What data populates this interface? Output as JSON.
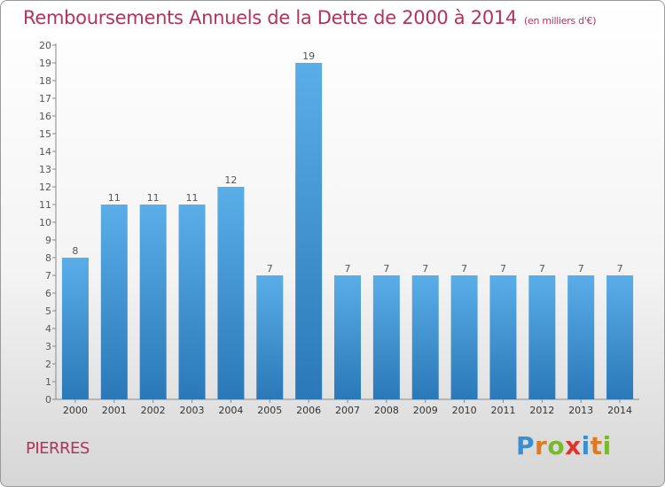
{
  "title": "Remboursements Annuels de la Dette de 2000 à 2014",
  "unit": "(en milliers d'€)",
  "commune": "PIERRES",
  "brand": {
    "letters": [
      {
        "char": "P",
        "color": "#3a8fd0"
      },
      {
        "char": "r",
        "color": "#e07a1f"
      },
      {
        "char": "o",
        "color": "#7ab830"
      },
      {
        "char": "x",
        "color": "#e0342b"
      },
      {
        "char": "i",
        "color": "#3a8fd0"
      },
      {
        "char": "t",
        "color": "#e07a1f"
      },
      {
        "char": "i",
        "color": "#7ab830"
      }
    ]
  },
  "colors": {
    "title": "#b5325c",
    "bar_top": "#5aaee8",
    "bar_bottom": "#2a78b8",
    "label": "#555555"
  },
  "chart_data": {
    "type": "bar",
    "title": "Remboursements Annuels de la Dette de 2000 à 2014",
    "categories": [
      "2000",
      "2001",
      "2002",
      "2003",
      "2004",
      "2005",
      "2006",
      "2007",
      "2008",
      "2009",
      "2010",
      "2011",
      "2012",
      "2013",
      "2014"
    ],
    "values": [
      8,
      11,
      11,
      11,
      12,
      7,
      19,
      7,
      7,
      7,
      7,
      7,
      7,
      7,
      7
    ],
    "ylim": [
      0,
      20
    ],
    "yticks": [
      0,
      1,
      2,
      3,
      4,
      5,
      6,
      7,
      8,
      9,
      10,
      11,
      12,
      13,
      14,
      15,
      16,
      17,
      18,
      19,
      20
    ],
    "xlabel": "",
    "ylabel": "",
    "grid": false,
    "legend": "none"
  }
}
